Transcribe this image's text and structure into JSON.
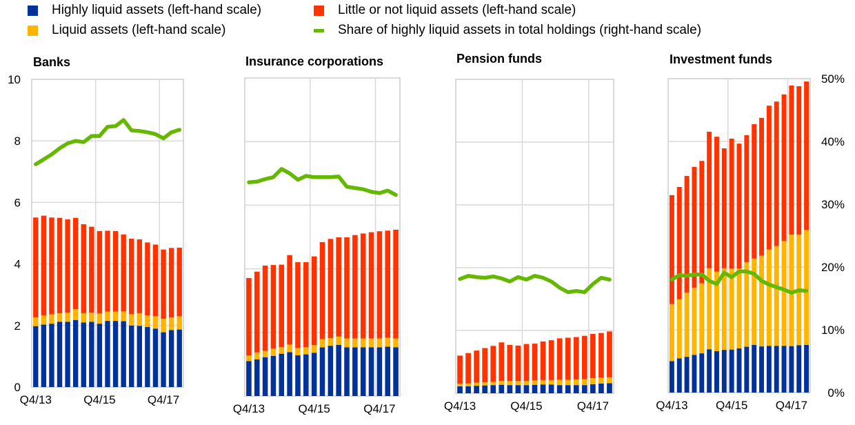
{
  "legend": [
    {
      "key": "highly_liquid",
      "label": "Highly liquid assets (left-hand scale)",
      "color": "#003299",
      "type": "box"
    },
    {
      "key": "little_or_not",
      "label": "Little or not liquid assets (left-hand scale)",
      "color": "#FF3300",
      "type": "box"
    },
    {
      "key": "liquid",
      "label": "Liquid assets (left-hand scale)",
      "color": "#FFB400",
      "type": "box"
    },
    {
      "key": "share",
      "label": "Share of highly liquid assets in total holdings (right-hand scale)",
      "color": "#65B800",
      "type": "line"
    }
  ],
  "chart_data": [
    {
      "type": "bar",
      "stacked": true,
      "title": "Banks",
      "left_axis": {
        "ylim": [
          0,
          10
        ],
        "ticks": [
          "0",
          "2",
          "4",
          "6",
          "8",
          "10"
        ]
      },
      "right_axis": {
        "ylim": [
          0,
          50
        ],
        "unit": "%"
      },
      "x_tick_labels": [
        "Q4/13",
        "Q4/15",
        "Q4/17"
      ],
      "x_tick_index": [
        0,
        8,
        16
      ],
      "series": [
        {
          "name": "Highly liquid assets",
          "values": [
            1.98,
            2.03,
            2.06,
            2.12,
            2.12,
            2.18,
            2.1,
            2.12,
            2.06,
            2.15,
            2.15,
            2.14,
            2.0,
            1.99,
            1.95,
            1.9,
            1.78,
            1.85,
            1.87
          ]
        },
        {
          "name": "Liquid assets",
          "values": [
            0.28,
            0.3,
            0.3,
            0.28,
            0.3,
            0.35,
            0.3,
            0.3,
            0.33,
            0.3,
            0.3,
            0.32,
            0.37,
            0.41,
            0.38,
            0.4,
            0.44,
            0.41,
            0.43
          ]
        },
        {
          "name": "Little or not liquid assets",
          "values": [
            3.25,
            3.24,
            3.15,
            3.1,
            3.03,
            2.97,
            2.89,
            2.79,
            2.68,
            2.63,
            2.62,
            2.5,
            2.45,
            2.4,
            2.37,
            2.33,
            2.25,
            2.26,
            2.23
          ]
        },
        {
          "name": "Share of highly liquid assets in total holdings",
          "axis": "right",
          "values": [
            36.2,
            37.0,
            37.8,
            38.8,
            39.6,
            40.0,
            39.8,
            40.8,
            40.8,
            42.3,
            42.4,
            43.4,
            41.7,
            41.6,
            41.4,
            41.1,
            40.4,
            41.4,
            41.8
          ]
        }
      ]
    },
    {
      "type": "bar",
      "stacked": true,
      "title": "Insurance corporations",
      "left_axis": {
        "ylim": [
          0,
          10
        ]
      },
      "right_axis": {
        "ylim": [
          0,
          50
        ],
        "unit": "%"
      },
      "x_tick_labels": [
        "Q4/13",
        "Q4/15",
        "Q4/17"
      ],
      "x_tick_index": [
        0,
        8,
        16
      ],
      "series": [
        {
          "name": "Highly liquid assets",
          "values": [
            1.1,
            1.15,
            1.22,
            1.26,
            1.33,
            1.38,
            1.28,
            1.31,
            1.36,
            1.53,
            1.58,
            1.61,
            1.53,
            1.53,
            1.53,
            1.53,
            1.53,
            1.55,
            1.53
          ]
        },
        {
          "name": "Liquid assets",
          "values": [
            0.18,
            0.22,
            0.2,
            0.23,
            0.21,
            0.24,
            0.23,
            0.23,
            0.24,
            0.26,
            0.24,
            0.26,
            0.28,
            0.28,
            0.28,
            0.28,
            0.28,
            0.28,
            0.28
          ]
        },
        {
          "name": "Little or not liquid assets",
          "values": [
            2.43,
            2.54,
            2.68,
            2.63,
            2.59,
            2.81,
            2.7,
            2.67,
            2.79,
            3.05,
            3.12,
            3.12,
            3.18,
            3.25,
            3.3,
            3.34,
            3.37,
            3.37,
            3.42
          ]
        },
        {
          "name": "Share of highly liquid assets in total holdings",
          "axis": "right",
          "values": [
            33.6,
            33.7,
            34.1,
            34.4,
            35.7,
            35.0,
            34.0,
            34.6,
            34.4,
            34.4,
            34.4,
            34.5,
            32.9,
            32.7,
            32.5,
            32.1,
            31.9,
            32.3,
            31.6
          ]
        }
      ]
    },
    {
      "type": "bar",
      "stacked": true,
      "title": "Pension funds",
      "left_axis": {
        "ylim": [
          0,
          10
        ]
      },
      "right_axis": {
        "ylim": [
          0,
          50
        ],
        "unit": "%"
      },
      "x_tick_labels": [
        "Q4/13",
        "Q4/15",
        "Q4/17"
      ],
      "x_tick_index": [
        0,
        8,
        16
      ],
      "series": [
        {
          "name": "Highly liquid assets",
          "values": [
            0.22,
            0.22,
            0.24,
            0.25,
            0.26,
            0.27,
            0.26,
            0.26,
            0.26,
            0.27,
            0.28,
            0.28,
            0.26,
            0.26,
            0.26,
            0.26,
            0.29,
            0.31,
            0.32
          ]
        },
        {
          "name": "Liquid assets",
          "values": [
            0.08,
            0.09,
            0.1,
            0.1,
            0.11,
            0.12,
            0.13,
            0.13,
            0.13,
            0.14,
            0.14,
            0.14,
            0.17,
            0.17,
            0.18,
            0.19,
            0.19,
            0.19,
            0.19
          ]
        },
        {
          "name": "Little or not liquid assets",
          "values": [
            0.9,
            0.97,
            1.02,
            1.09,
            1.14,
            1.23,
            1.15,
            1.13,
            1.18,
            1.17,
            1.23,
            1.27,
            1.32,
            1.34,
            1.35,
            1.38,
            1.41,
            1.42,
            1.46
          ]
        },
        {
          "name": "Share of highly liquid assets in total holdings",
          "axis": "right",
          "values": [
            18.2,
            18.7,
            18.5,
            18.4,
            18.6,
            18.3,
            17.8,
            18.5,
            18.1,
            18.7,
            18.4,
            17.8,
            16.8,
            16.1,
            16.3,
            16.1,
            17.4,
            18.4,
            18.1
          ]
        }
      ]
    },
    {
      "type": "bar",
      "stacked": true,
      "title": "Investment funds",
      "left_axis": {
        "ylim": [
          0,
          10
        ]
      },
      "right_axis": {
        "ylim": [
          0,
          50
        ],
        "unit": "%",
        "ticks": [
          "0%",
          "10%",
          "20%",
          "30%",
          "40%",
          "50%"
        ]
      },
      "x_tick_labels": [
        "Q4/13",
        "Q4/15",
        "Q4/17"
      ],
      "x_tick_index": [
        0,
        8,
        16
      ],
      "series": [
        {
          "name": "Highly liquid assets",
          "values": [
            1.0,
            1.09,
            1.14,
            1.2,
            1.25,
            1.38,
            1.32,
            1.36,
            1.37,
            1.41,
            1.46,
            1.52,
            1.47,
            1.49,
            1.49,
            1.49,
            1.48,
            1.51,
            1.52
          ]
        },
        {
          "name": "Liquid assets",
          "values": [
            1.82,
            1.88,
            2.04,
            2.14,
            2.23,
            2.58,
            2.53,
            2.6,
            2.58,
            2.54,
            2.69,
            2.75,
            2.89,
            3.07,
            3.18,
            3.34,
            3.55,
            3.52,
            3.66
          ]
        },
        {
          "name": "Little or not liquid assets",
          "values": [
            3.47,
            3.58,
            3.72,
            3.85,
            3.9,
            4.35,
            4.3,
            3.82,
            4.14,
            3.98,
            4.05,
            4.28,
            4.39,
            4.58,
            4.6,
            4.67,
            4.75,
            4.73,
            4.73
          ]
        },
        {
          "name": "Share of highly liquid assets in total holdings",
          "axis": "right",
          "values": [
            18.0,
            18.7,
            18.6,
            18.8,
            18.8,
            17.8,
            17.3,
            19.1,
            18.4,
            19.3,
            19.3,
            18.9,
            17.8,
            17.2,
            16.8,
            16.4,
            15.9,
            16.3,
            16.2
          ]
        }
      ]
    }
  ]
}
